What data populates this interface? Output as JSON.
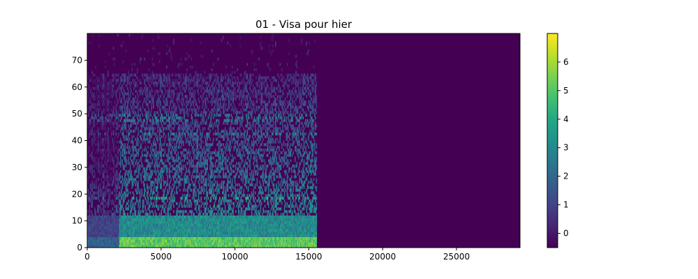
{
  "chart_data": {
    "type": "heatmap",
    "title": "01 - Visa pour hier",
    "xlabel": "",
    "ylabel": "",
    "xlim": [
      0,
      29300
    ],
    "ylim": [
      0,
      80
    ],
    "x_ticks": [
      {
        "value": 0,
        "label": "0"
      },
      {
        "value": 5000,
        "label": "5000"
      },
      {
        "value": 10000,
        "label": "10000"
      },
      {
        "value": 15000,
        "label": "15000"
      },
      {
        "value": 20000,
        "label": "20000"
      },
      {
        "value": 25000,
        "label": "25000"
      }
    ],
    "y_ticks": [
      {
        "value": 0,
        "label": "0"
      },
      {
        "value": 10,
        "label": "10"
      },
      {
        "value": 20,
        "label": "20"
      },
      {
        "value": 30,
        "label": "30"
      },
      {
        "value": 40,
        "label": "40"
      },
      {
        "value": 50,
        "label": "50"
      },
      {
        "value": 60,
        "label": "60"
      },
      {
        "value": 70,
        "label": "70"
      }
    ],
    "colormap": "viridis",
    "colorbar": {
      "range": [
        -0.5,
        7
      ],
      "ticks": [
        {
          "value": 0,
          "label": "0"
        },
        {
          "value": 1,
          "label": "1"
        },
        {
          "value": 2,
          "label": "2"
        },
        {
          "value": 3,
          "label": "3"
        },
        {
          "value": 4,
          "label": "4"
        },
        {
          "value": 5,
          "label": "5"
        },
        {
          "value": 6,
          "label": "6"
        }
      ]
    },
    "background_value": -0.5,
    "signal_x_extent": [
      0,
      15500
    ],
    "grid": false
  }
}
